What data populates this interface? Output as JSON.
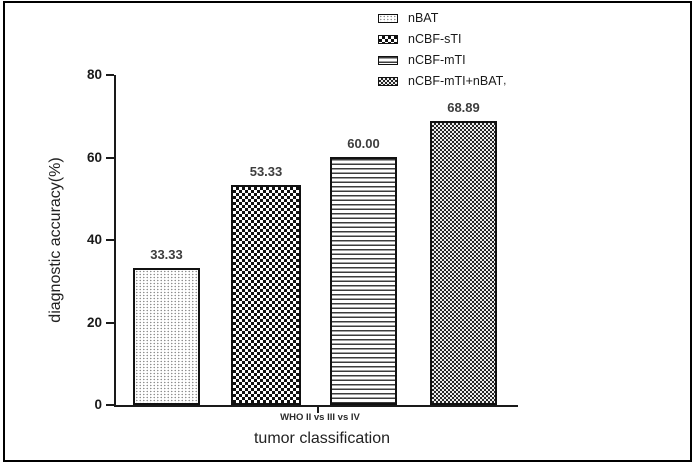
{
  "colors": {
    "axis": "#1a1a1a",
    "bar_border": "#111111",
    "value_label": "#3d3d3d",
    "text": "#222222"
  },
  "chart_data": {
    "type": "bar",
    "title": "",
    "xlabel": "tumor classification",
    "ylabel": "diagnostic accuracy(%)",
    "x_tick_label": "WHO II vs III vs IV",
    "ylim": [
      0,
      80
    ],
    "yticks": [
      "0",
      "20",
      "40",
      "60",
      "80"
    ],
    "grid": false,
    "legend_position": "top-right",
    "legend_suffix_last": ",",
    "series": [
      {
        "name": "nBAT",
        "value": 33.33,
        "value_label": "33.33",
        "pattern": "dots"
      },
      {
        "name": "nCBF-sTI",
        "value": 53.33,
        "value_label": "53.33",
        "pattern": "checker-bold"
      },
      {
        "name": "nCBF-mTI",
        "value": 60.0,
        "value_label": "60.00",
        "pattern": "hlines"
      },
      {
        "name": "nCBF-mTI+nBAT",
        "value": 68.89,
        "value_label": "68.89",
        "pattern": "checker-fine"
      }
    ]
  }
}
